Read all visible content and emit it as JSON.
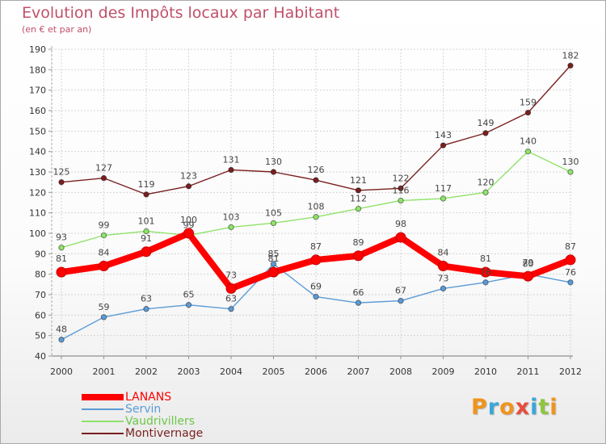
{
  "title": "Evolution des Impôts locaux par Habitant",
  "subtitle": "(en € et par an)",
  "logo": {
    "text": "Proxiti",
    "letter_colors": [
      "#f0941c",
      "#3aa6d8",
      "#f0941c",
      "#e84c3c",
      "#3aa6d8",
      "#8dc63f",
      "#f0941c"
    ]
  },
  "chart_data": {
    "type": "line",
    "title": "Evolution des Impôts locaux par Habitant",
    "subtitle": "(en € et par an)",
    "xlabel": "",
    "ylabel": "",
    "x": [
      "2000",
      "2001",
      "2002",
      "2003",
      "2004",
      "2005",
      "2006",
      "2007",
      "2008",
      "2009",
      "2010",
      "2011",
      "2012"
    ],
    "ylim": [
      40,
      190
    ],
    "yticks": [
      40,
      50,
      60,
      70,
      80,
      90,
      100,
      110,
      120,
      130,
      140,
      150,
      160,
      170,
      180,
      190
    ],
    "grid": true,
    "legend_position": "bottom-left",
    "series": [
      {
        "name": "LANANS",
        "color": "#ff0000",
        "values": [
          81,
          84,
          91,
          100,
          73,
          81,
          87,
          89,
          98,
          84,
          81,
          79,
          87
        ]
      },
      {
        "name": "Servin",
        "color": "#5b9bd5",
        "values": [
          48,
          59,
          63,
          65,
          63,
          85,
          69,
          66,
          67,
          73,
          76,
          80,
          76
        ]
      },
      {
        "name": "Vaudrivillers",
        "color": "#8fe36a",
        "values": [
          93,
          99,
          101,
          99,
          103,
          105,
          108,
          112,
          116,
          117,
          120,
          140,
          130
        ]
      },
      {
        "name": "Montivernage",
        "color": "#7a1f1f",
        "values": [
          125,
          127,
          119,
          123,
          131,
          130,
          126,
          121,
          122,
          143,
          149,
          159,
          182
        ]
      }
    ]
  }
}
